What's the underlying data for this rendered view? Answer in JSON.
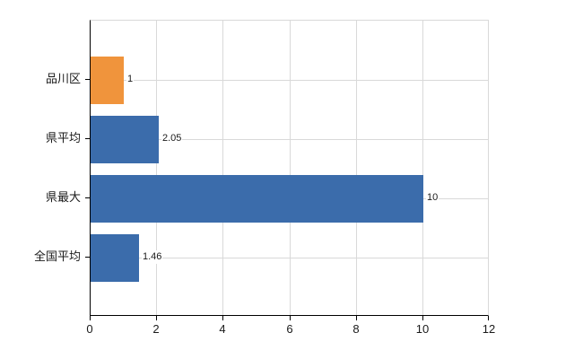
{
  "chart_data": {
    "type": "bar",
    "orientation": "horizontal",
    "title": "",
    "xlabel": "",
    "ylabel": "",
    "xlim": [
      0,
      12
    ],
    "xticks": [
      "0",
      "2",
      "4",
      "6",
      "8",
      "10",
      "12"
    ],
    "xtick_values": [
      0,
      2,
      4,
      6,
      8,
      10,
      12
    ],
    "grid": true,
    "legend": false,
    "categories": [
      "品川区",
      "県平均",
      "県最大",
      "全国平均"
    ],
    "bars": [
      {
        "category": "品川区",
        "value": 1,
        "value_label": "1",
        "color": "#f0943c"
      },
      {
        "category": "県平均",
        "value": 2.05,
        "value_label": "2.05",
        "color": "#3b6cab"
      },
      {
        "category": "県最大",
        "value": 10,
        "value_label": "10",
        "color": "#3b6cab"
      },
      {
        "category": "全国平均",
        "value": 1.46,
        "value_label": "1.46",
        "color": "#3b6cab"
      }
    ],
    "colors": {
      "highlight_bar": "#f0943c",
      "default_bar": "#3b6cab",
      "gridline": "#d9d9d9",
      "axis": "#000000",
      "text": "#1a1a1a",
      "background": "#ffffff"
    }
  }
}
